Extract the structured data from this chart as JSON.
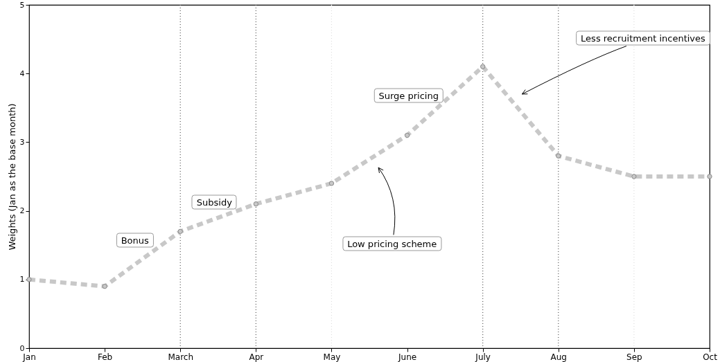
{
  "chart_data": {
    "type": "line",
    "ylabel": "Weights (Jan as the base month)",
    "categories": [
      "Jan",
      "Feb",
      "March",
      "Apr",
      "May",
      "June",
      "July",
      "Aug",
      "Sep",
      "Oct"
    ],
    "series": [
      {
        "color": "#c8c8c8",
        "values": [
          1.0,
          0.9,
          1.7,
          2.1,
          2.4,
          3.1,
          4.1,
          2.8,
          2.5,
          2.5
        ]
      }
    ],
    "ylim": [
      0,
      5
    ],
    "yticks": [
      0,
      1,
      2,
      3,
      4,
      5
    ],
    "grid": false,
    "marker": "circle",
    "line_style": "dashed",
    "ref_lines": [
      {
        "axis": "x",
        "value": "March",
        "color": "#555555",
        "line_style": "dotted"
      },
      {
        "axis": "x",
        "value": "Apr",
        "color": "#555555",
        "line_style": "dotted"
      },
      {
        "axis": "x",
        "value": "May",
        "color": "#dddddd",
        "line_style": "dotted"
      },
      {
        "axis": "x",
        "value": "July",
        "color": "#555555",
        "line_style": "dotted"
      },
      {
        "axis": "x",
        "value": "Aug",
        "color": "#555555",
        "line_style": "dotted"
      },
      {
        "axis": "x",
        "value": "Sep",
        "color": "#dddddd",
        "line_style": "dotted"
      }
    ],
    "annotations": [
      "Bonus",
      "Subsidy",
      "Low pricing scheme",
      "Surge pricing",
      "Less recruitment incentives"
    ]
  }
}
